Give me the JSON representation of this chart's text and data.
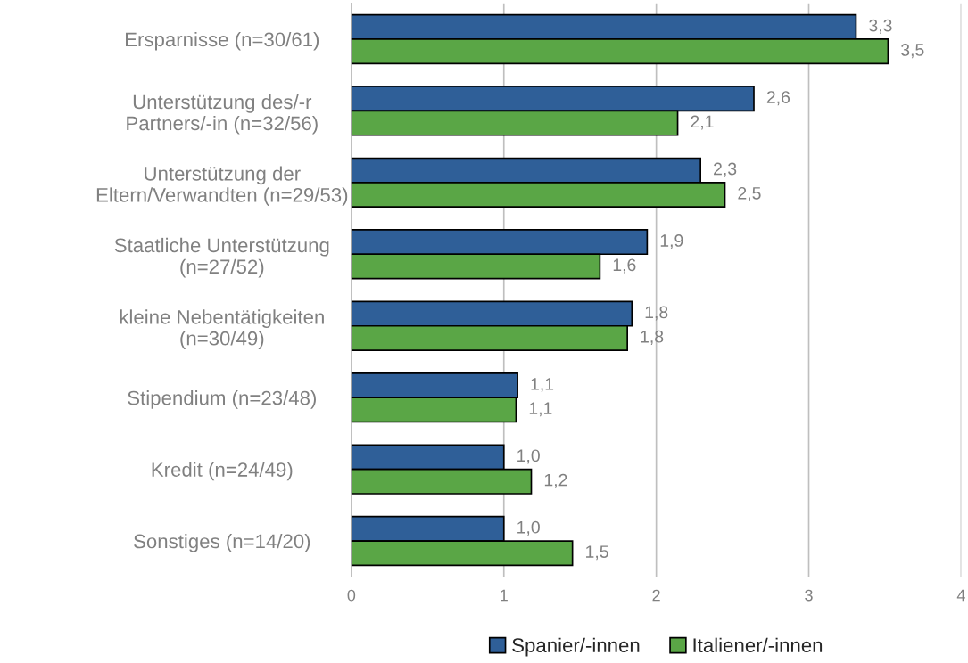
{
  "chart_data": {
    "type": "bar",
    "orientation": "horizontal",
    "categories": [
      "Ersparnisse (n=30/61)",
      "Unterstützung des/-r\nPartners/-in (n=32/56)",
      "Unterstützung der\nEltern/Verwandten (n=29/53)",
      "Staatliche Unterstützung\n(n=27/52)",
      "kleine Nebentätigkeiten\n(n=30/49)",
      "Stipendium (n=23/48)",
      "Kredit (n=24/49)",
      "Sonstiges (n=14/20)"
    ],
    "series": [
      {
        "name": "Spanier/-innen",
        "color": "#2f5f98",
        "values": [
          3.31,
          2.64,
          2.29,
          1.94,
          1.84,
          1.09,
          1.0,
          1.0
        ],
        "value_labels": [
          "3,3",
          "2,6",
          "2,3",
          "1,9",
          "1,8",
          "1,1",
          "1,0",
          "1,0"
        ]
      },
      {
        "name": "Italiener/-innen",
        "color": "#5aa646",
        "values": [
          3.52,
          2.14,
          2.45,
          1.63,
          1.81,
          1.08,
          1.18,
          1.45
        ],
        "value_labels": [
          "3,5",
          "2,1",
          "2,5",
          "1,6",
          "1,8",
          "1,1",
          "1,2",
          "1,5"
        ]
      }
    ],
    "xlim": [
      0,
      4
    ],
    "xticks": [
      0,
      1,
      2,
      3,
      4
    ],
    "grid": "x",
    "legend": "bottom"
  }
}
